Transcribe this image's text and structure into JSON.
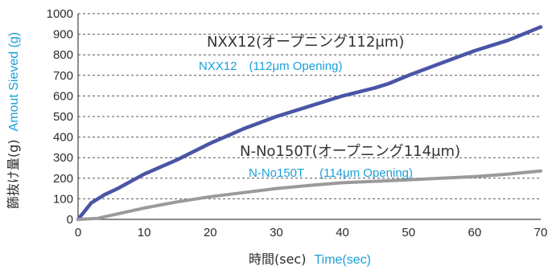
{
  "chart_data": {
    "type": "line",
    "xlabel": {
      "jp": "時間(sec)",
      "en": "Time(sec)"
    },
    "ylabel": {
      "jp": "篩抜け量(g)",
      "en": "Amout Sieved (g)"
    },
    "xlim": [
      0,
      70
    ],
    "ylim": [
      0,
      1000
    ],
    "xticks": [
      0,
      10,
      20,
      30,
      40,
      50,
      60,
      70
    ],
    "yticks": [
      0,
      100,
      200,
      300,
      400,
      500,
      600,
      700,
      800,
      900,
      1000
    ],
    "grid": "horizontal-dashed",
    "series": [
      {
        "name": "NXX12",
        "label_jp": "NXX12(オープニング112μm)",
        "label_en": "NXX12　(112μm Opening)",
        "color": "#4a55a6",
        "x": [
          0,
          1,
          2,
          4,
          6,
          10,
          15,
          20,
          25,
          30,
          35,
          40,
          45,
          47,
          50,
          55,
          60,
          65,
          70
        ],
        "y": [
          0,
          40,
          80,
          120,
          150,
          220,
          290,
          370,
          440,
          500,
          550,
          600,
          640,
          660,
          700,
          760,
          820,
          870,
          935
        ]
      },
      {
        "name": "N-No150T",
        "label_jp": "N-No150T(オープニング114μm)",
        "label_en": "N-No150T　 (114μm Opening)",
        "color": "#9a9a9a",
        "x": [
          0,
          3,
          5,
          10,
          15,
          20,
          25,
          30,
          35,
          40,
          45,
          50,
          55,
          60,
          65,
          70
        ],
        "y": [
          0,
          5,
          20,
          55,
          85,
          110,
          130,
          150,
          165,
          178,
          185,
          192,
          200,
          208,
          220,
          235
        ]
      }
    ]
  }
}
